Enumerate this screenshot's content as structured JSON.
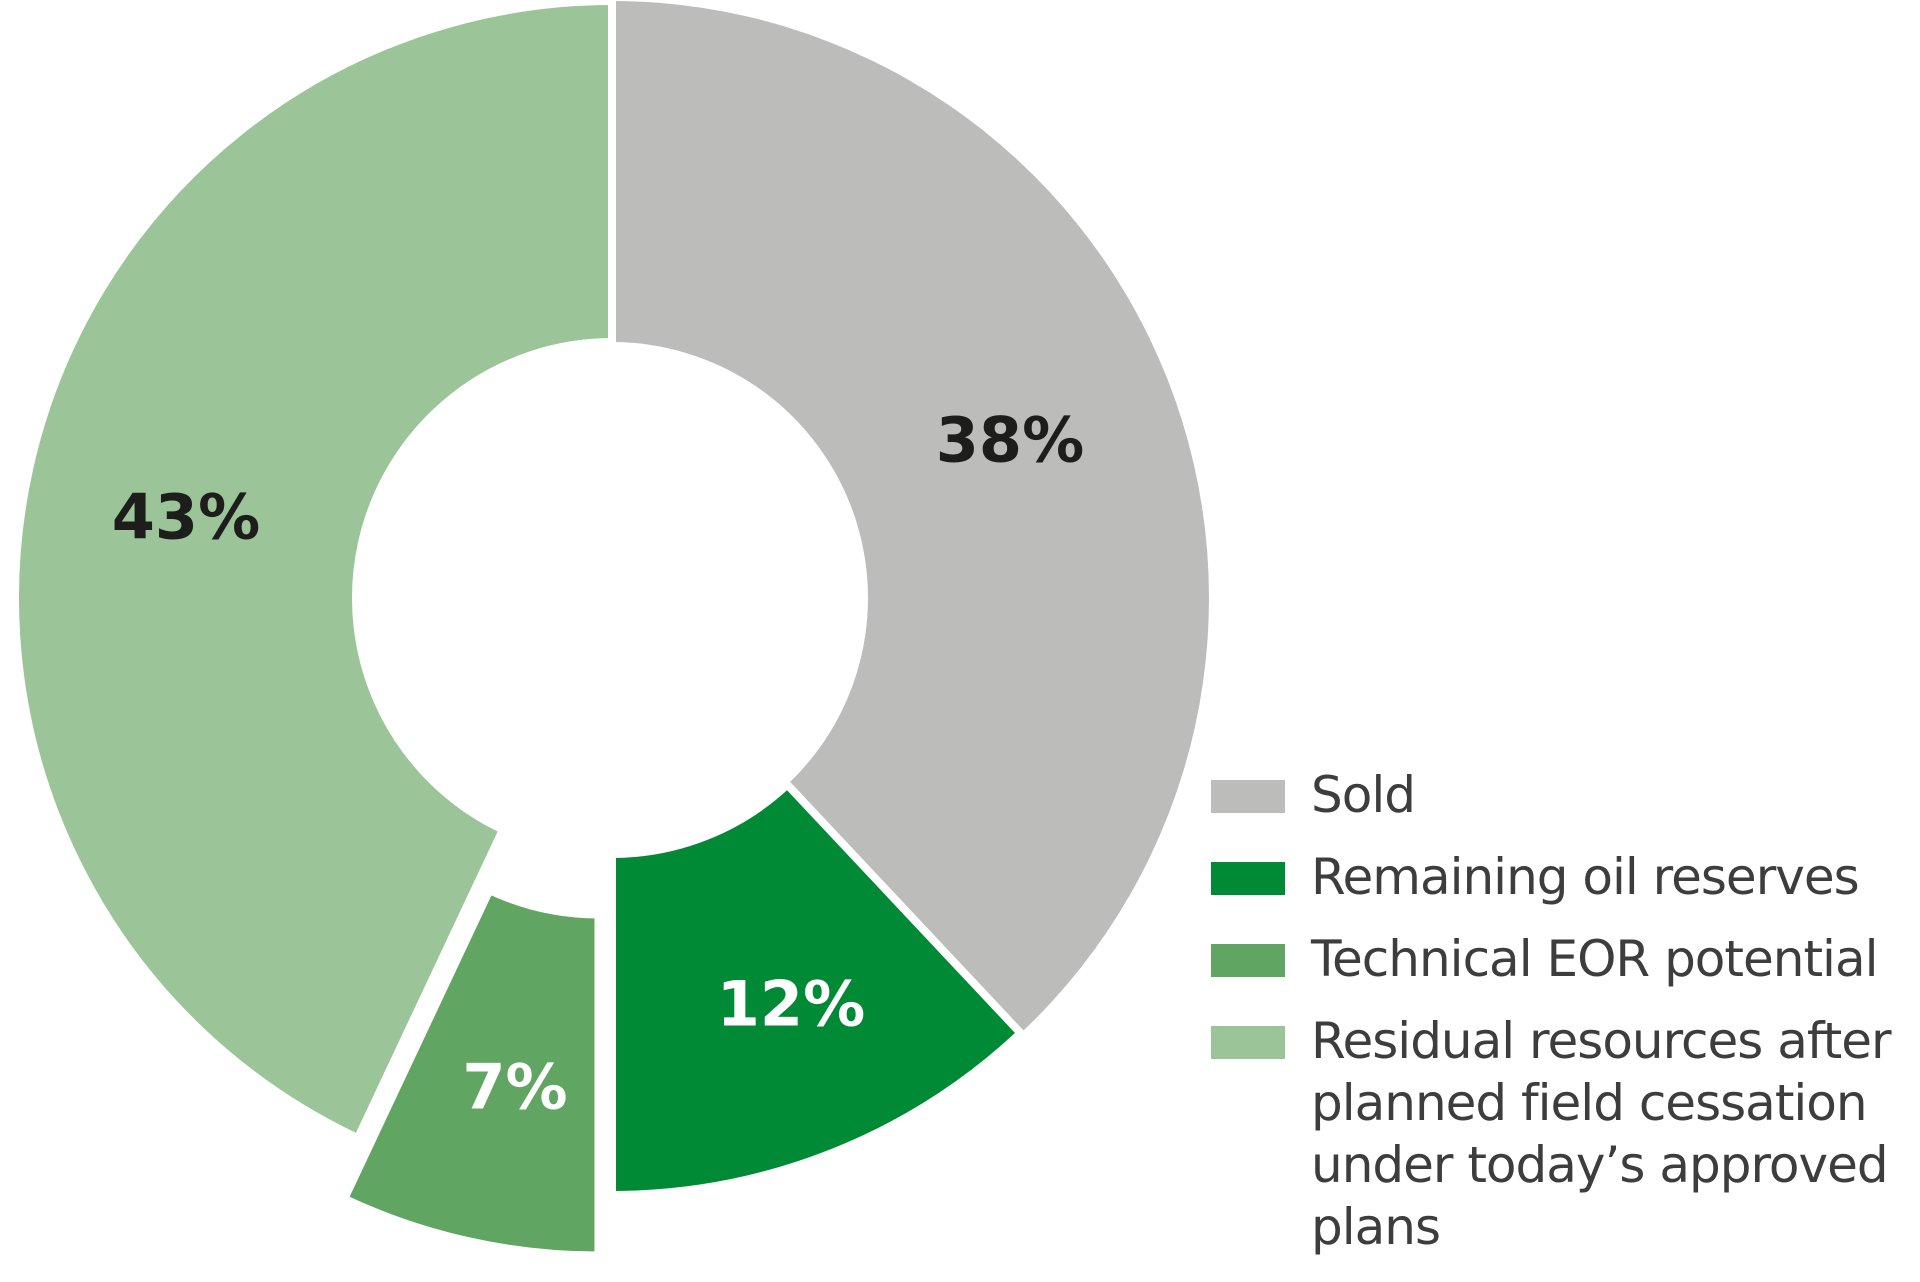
{
  "chart_data": {
    "type": "pie",
    "variant": "donut",
    "title": "",
    "categories": [
      "Sold",
      "Remaining oil reserves",
      "Technical EOR potential",
      "Residual resources after planned field cessation under today’s approved plans"
    ],
    "values": [
      38,
      12,
      7,
      43
    ],
    "labels": [
      "38%",
      "12%",
      "7%",
      "43%"
    ],
    "colors": [
      "#bcbcbb",
      "#008a36",
      "#61a563",
      "#9bc598"
    ],
    "label_colors": [
      "#1d1d1b",
      "#ffffff",
      "#ffffff",
      "#1d1d1b"
    ],
    "exploded": [
      false,
      false,
      true,
      false
    ],
    "start_angle_deg": 0,
    "direction": "clockwise",
    "legend_position": "right-bottom"
  },
  "legend": {
    "items": [
      {
        "label": "Sold",
        "color": "#bcbcbb"
      },
      {
        "label": "Remaining oil reserves",
        "color": "#008a36"
      },
      {
        "label": "Technical EOR potential",
        "color": "#61a563"
      },
      {
        "label": "Residual resources after\nplanned field cessation\nunder today’s approved\nplans",
        "color": "#9bc598"
      }
    ]
  }
}
